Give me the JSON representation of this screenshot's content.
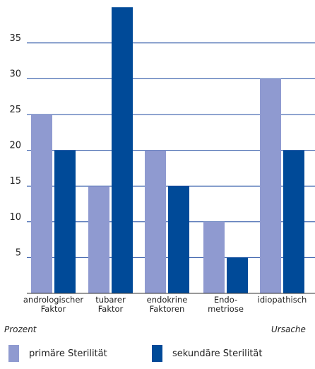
{
  "colors": {
    "primary": "#8f9ad0",
    "secondary": "#004a98",
    "grid": "#1f4aa0"
  },
  "axis": {
    "y_name": "Prozent",
    "x_name": "Ursache"
  },
  "chart_data": {
    "type": "bar",
    "categories": [
      [
        "andrologischer",
        "Faktor"
      ],
      [
        "tubarer",
        "Faktor"
      ],
      [
        "endokrine",
        "Faktoren"
      ],
      [
        "Endo-",
        "metriose"
      ],
      [
        "idiopathisch"
      ]
    ],
    "series": [
      {
        "name": "primäre Sterilität",
        "values": [
          25,
          15,
          20,
          10,
          30
        ]
      },
      {
        "name": "sekundäre Sterilität",
        "values": [
          20,
          40,
          15,
          5,
          20
        ]
      }
    ],
    "yticks": [
      5,
      10,
      15,
      20,
      25,
      30,
      35
    ],
    "ylim": [
      0,
      40
    ],
    "grid": true,
    "legend": "bottom",
    "xlabel": "Ursache",
    "ylabel": "Prozent"
  }
}
